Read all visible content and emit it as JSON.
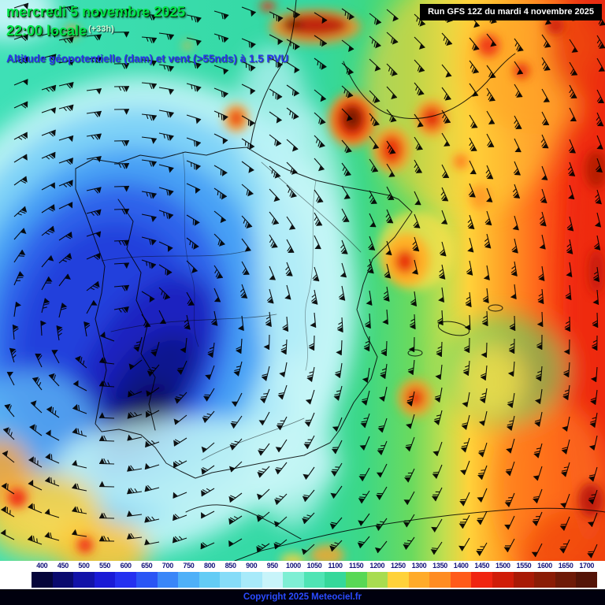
{
  "header": {
    "date": "mercredi 5 novembre 2025",
    "time": "22:00 locale",
    "time_offset": "(+33h)",
    "subtitle": "Altitude géopotentielle (dam) et vent (>55nds) à 1.5 PVU",
    "run_info": "Run GFS 12Z du mardi 4 novembre 2025"
  },
  "legend": {
    "values": [
      "400",
      "450",
      "500",
      "550",
      "600",
      "650",
      "700",
      "750",
      "800",
      "850",
      "900",
      "950",
      "1000",
      "1050",
      "1100",
      "1150",
      "1200",
      "1250",
      "1300",
      "1350",
      "1400",
      "1450",
      "1500",
      "1550",
      "1600",
      "1650",
      "1700"
    ],
    "segment_colors": [
      "#05053a",
      "#0a0a6e",
      "#1212a8",
      "#1a1ad6",
      "#2430f0",
      "#2a55f5",
      "#3a86f8",
      "#4fb0f8",
      "#63ccf5",
      "#86dcf8",
      "#a8eafa",
      "#c8f4fa",
      "#7eefd4",
      "#4fe4b4",
      "#35d89a",
      "#58d855",
      "#a8dc50",
      "#ffd23a",
      "#ffab2a",
      "#ff8c22",
      "#ff5a1a",
      "#f02410",
      "#d01c08",
      "#a81a06",
      "#8a1c06",
      "#6e1a08",
      "#541408"
    ]
  },
  "footer": {
    "copyright": "Copyright 2025 Meteociel.fr"
  },
  "colors": {
    "title_green": "#00e44a",
    "offset_text": "#ccffd6",
    "subtitle_blue": "#2934f0",
    "run_box_bg": "#000000",
    "run_box_text": "#ffffff",
    "legend_text": "#12127a",
    "legend_bg": "#ffffff",
    "copyright_bg": "#00000e",
    "copyright_text": "#2a4bff",
    "barb_color": "#000000"
  },
  "chart_data": {
    "type": "heatmap",
    "title": "Altitude géopotentielle (dam) et vent (>55nds) à 1.5 PVU",
    "legend_values_dam": [
      400,
      450,
      500,
      550,
      600,
      650,
      700,
      750,
      800,
      850,
      900,
      950,
      1000,
      1050,
      1100,
      1150,
      1200,
      1250,
      1300,
      1350,
      1400,
      1450,
      1500,
      1550,
      1600,
      1650,
      1700
    ],
    "legend_position": "bottom"
  }
}
